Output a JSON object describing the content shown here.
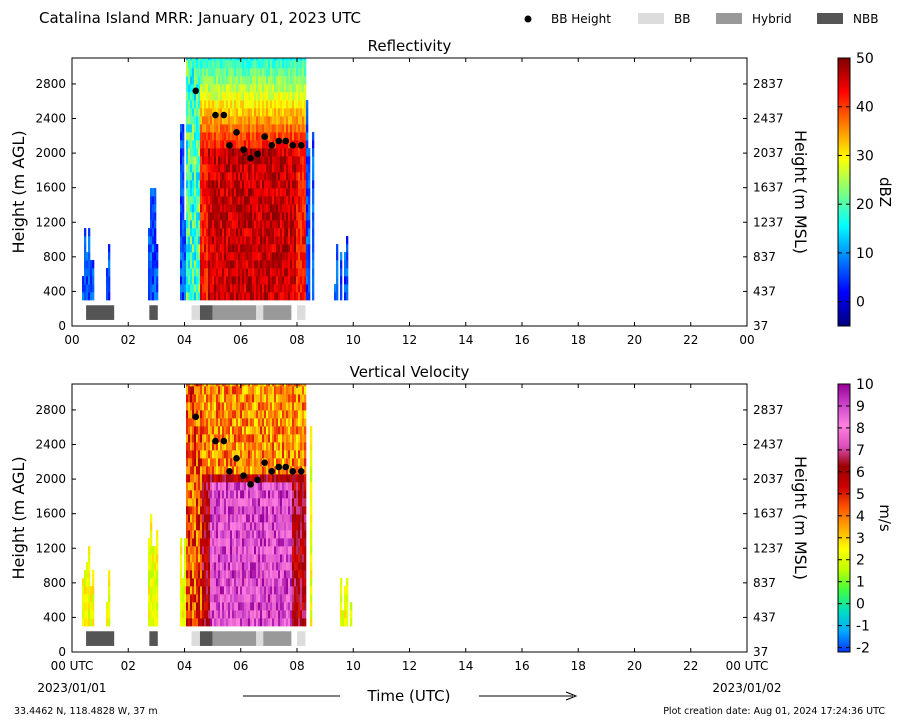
{
  "header": {
    "title": "Catalina Island MRR:  January 01, 2023 UTC",
    "legend": [
      {
        "label": "BB Height",
        "kind": "dot",
        "color": "#000000"
      },
      {
        "label": "BB",
        "kind": "box",
        "color": "#dcdcdc"
      },
      {
        "label": "Hybrid",
        "kind": "box",
        "color": "#999999"
      },
      {
        "label": "NBB",
        "kind": "box",
        "color": "#555555"
      }
    ]
  },
  "footer": {
    "location": "33.4462 N, 118.4828 W, 37 m",
    "created": "Plot creation date: Aug 01, 2024 17:24:36 UTC",
    "xlabel": "Time (UTC)",
    "start_date": "2023/01/01",
    "end_date": "2023/01/02"
  },
  "chart_data": [
    {
      "type": "heatmap",
      "title": "Reflectivity",
      "ylabel": "Height (m AGL)",
      "y2label": "Height (m MSL)",
      "xlim": [
        0,
        24
      ],
      "ylim": [
        0,
        3100
      ],
      "xticks": [
        "00",
        "02",
        "04",
        "06",
        "08",
        "10",
        "12",
        "14",
        "16",
        "18",
        "20",
        "22",
        "00"
      ],
      "yticks": [
        0,
        400,
        800,
        1200,
        1600,
        2000,
        2400,
        2800
      ],
      "y2ticks": [
        "37",
        "437",
        "837",
        "1237",
        "1637",
        "2037",
        "2437",
        "2837"
      ],
      "colorbar": {
        "label": "dBZ",
        "range": [
          -5,
          50
        ],
        "ticks": [
          0,
          10,
          20,
          30,
          40,
          50
        ],
        "colors": [
          "#00007f",
          "#0000ff",
          "#007fff",
          "#00ffff",
          "#7fff7f",
          "#ffff00",
          "#ff7f00",
          "#ff0000",
          "#7f0000"
        ]
      },
      "bb_height": [
        {
          "x": 4.4,
          "y": 2720
        },
        {
          "x": 5.1,
          "y": 2440
        },
        {
          "x": 5.4,
          "y": 2440
        },
        {
          "x": 5.6,
          "y": 2090
        },
        {
          "x": 5.85,
          "y": 2240
        },
        {
          "x": 6.1,
          "y": 2040
        },
        {
          "x": 6.35,
          "y": 1940
        },
        {
          "x": 6.6,
          "y": 1990
        },
        {
          "x": 6.85,
          "y": 2190
        },
        {
          "x": 7.1,
          "y": 2090
        },
        {
          "x": 7.35,
          "y": 2140
        },
        {
          "x": 7.6,
          "y": 2140
        },
        {
          "x": 7.85,
          "y": 2090
        },
        {
          "x": 8.15,
          "y": 2090
        }
      ],
      "bb_class": [
        {
          "start": 0.5,
          "end": 1.5,
          "kind": "NBB"
        },
        {
          "start": 2.75,
          "end": 3.05,
          "kind": "NBB"
        },
        {
          "start": 4.25,
          "end": 4.55,
          "kind": "BB"
        },
        {
          "start": 4.55,
          "end": 5.0,
          "kind": "NBB"
        },
        {
          "start": 5.0,
          "end": 6.55,
          "kind": "Hybrid"
        },
        {
          "start": 6.55,
          "end": 6.8,
          "kind": "BB"
        },
        {
          "start": 6.8,
          "end": 7.8,
          "kind": "Hybrid"
        },
        {
          "start": 8.0,
          "end": 8.3,
          "kind": "BB"
        }
      ]
    },
    {
      "type": "heatmap",
      "title": "Vertical Velocity",
      "ylabel": "Height (m AGL)",
      "y2label": "Height (m MSL)",
      "xlim": [
        0,
        24
      ],
      "ylim": [
        0,
        3100
      ],
      "xticks": [
        "00 UTC",
        "02",
        "04",
        "06",
        "08",
        "10",
        "12",
        "14",
        "16",
        "18",
        "20",
        "22",
        "00 UTC"
      ],
      "yticks": [
        0,
        400,
        800,
        1200,
        1600,
        2000,
        2400,
        2800
      ],
      "y2ticks": [
        "37",
        "437",
        "837",
        "1237",
        "1637",
        "2037",
        "2437",
        "2837"
      ],
      "colorbar": {
        "label": "m/s",
        "range": [
          -2.2,
          10
        ],
        "ticks": [
          -2,
          -1,
          0,
          1,
          2,
          3,
          4,
          5,
          6,
          7,
          8,
          9,
          10
        ],
        "colors": [
          "#0033ff",
          "#00aaff",
          "#00e0c0",
          "#40ff40",
          "#bfff00",
          "#ffff00",
          "#ffaa00",
          "#ff5500",
          "#cc0000",
          "#9a0000",
          "#e050c0",
          "#ff80e0",
          "#cc44cc",
          "#990099"
        ]
      },
      "bb_height": [
        {
          "x": 4.4,
          "y": 2720
        },
        {
          "x": 5.1,
          "y": 2440
        },
        {
          "x": 5.4,
          "y": 2440
        },
        {
          "x": 5.6,
          "y": 2090
        },
        {
          "x": 5.85,
          "y": 2240
        },
        {
          "x": 6.1,
          "y": 2040
        },
        {
          "x": 6.35,
          "y": 1940
        },
        {
          "x": 6.6,
          "y": 1990
        },
        {
          "x": 6.85,
          "y": 2190
        },
        {
          "x": 7.1,
          "y": 2090
        },
        {
          "x": 7.35,
          "y": 2140
        },
        {
          "x": 7.6,
          "y": 2140
        },
        {
          "x": 7.85,
          "y": 2090
        },
        {
          "x": 8.15,
          "y": 2090
        }
      ],
      "bb_class": [
        {
          "start": 0.5,
          "end": 1.5,
          "kind": "NBB"
        },
        {
          "start": 2.75,
          "end": 3.05,
          "kind": "NBB"
        },
        {
          "start": 4.25,
          "end": 4.55,
          "kind": "BB"
        },
        {
          "start": 4.55,
          "end": 5.0,
          "kind": "NBB"
        },
        {
          "start": 5.0,
          "end": 6.55,
          "kind": "Hybrid"
        },
        {
          "start": 6.55,
          "end": 6.8,
          "kind": "BB"
        },
        {
          "start": 6.8,
          "end": 7.8,
          "kind": "Hybrid"
        },
        {
          "start": 8.0,
          "end": 8.3,
          "kind": "BB"
        }
      ]
    }
  ]
}
